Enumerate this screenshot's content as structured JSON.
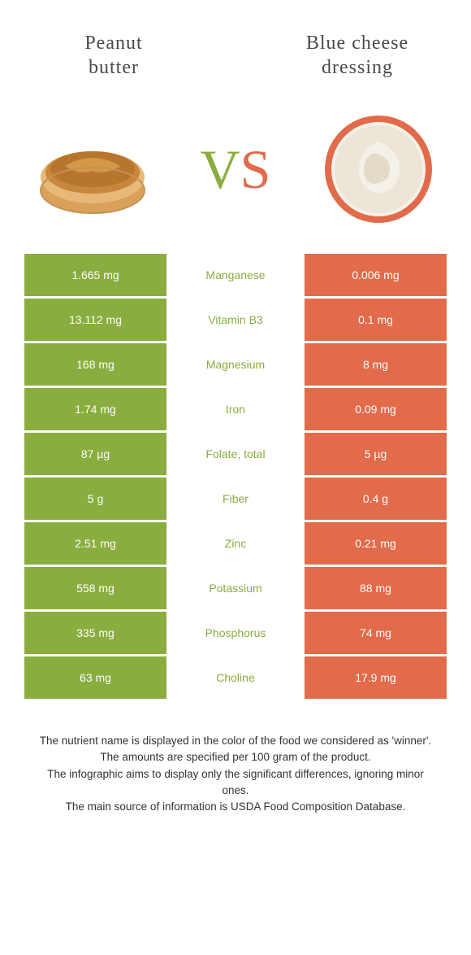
{
  "header": {
    "left_title": "Peanut\nbutter",
    "right_title": "Blue cheese\ndressing",
    "vs_v": "V",
    "vs_s": "S"
  },
  "colors": {
    "left": "#8aad3f",
    "right": "#e16b4a",
    "background": "#ffffff",
    "text_footnote": "#333333"
  },
  "nutrients": [
    {
      "name": "Manganese",
      "left": "1.665 mg",
      "right": "0.006 mg",
      "winner": "left"
    },
    {
      "name": "Vitamin B3",
      "left": "13.112 mg",
      "right": "0.1 mg",
      "winner": "left"
    },
    {
      "name": "Magnesium",
      "left": "168 mg",
      "right": "8 mg",
      "winner": "left"
    },
    {
      "name": "Iron",
      "left": "1.74 mg",
      "right": "0.09 mg",
      "winner": "left"
    },
    {
      "name": "Folate, total",
      "left": "87 µg",
      "right": "5 µg",
      "winner": "left"
    },
    {
      "name": "Fiber",
      "left": "5 g",
      "right": "0.4 g",
      "winner": "left"
    },
    {
      "name": "Zinc",
      "left": "2.51 mg",
      "right": "0.21 mg",
      "winner": "left"
    },
    {
      "name": "Potassium",
      "left": "558 mg",
      "right": "88 mg",
      "winner": "left"
    },
    {
      "name": "Phosphorus",
      "left": "335 mg",
      "right": "74 mg",
      "winner": "left"
    },
    {
      "name": "Choline",
      "left": "63 mg",
      "right": "17.9 mg",
      "winner": "left"
    }
  ],
  "footnotes": [
    "The nutrient name is displayed in the color of the food we considered as 'winner'.",
    "The amounts are specified per 100 gram of the product.",
    "The infographic aims to display only the significant differences, ignoring minor ones.",
    "The main source of information is USDA Food Composition Database."
  ]
}
